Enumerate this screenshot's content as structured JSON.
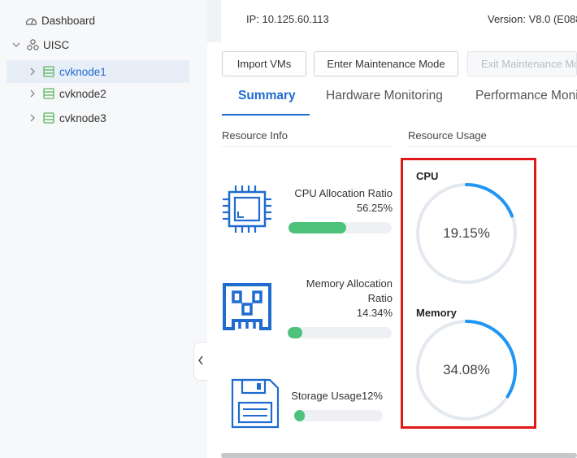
{
  "sidebar": {
    "dashboard_label": "Dashboard",
    "cluster_label": "UISC",
    "nodes": [
      {
        "label": "cvknode1",
        "selected": true
      },
      {
        "label": "cvknode2",
        "selected": false
      },
      {
        "label": "cvknode3",
        "selected": false
      }
    ]
  },
  "header": {
    "ip": "IP: 10.125.60.113",
    "version": "Version: V8.0 (E088"
  },
  "toolbar": {
    "import_label": "Import VMs",
    "enter_maintenance_label": "Enter Maintenance Mode",
    "exit_maintenance_label": "Exit Maintenance Mo"
  },
  "tabs": [
    {
      "label": "Summary",
      "active": true
    },
    {
      "label": "Hardware Monitoring",
      "active": false
    },
    {
      "label": "Performance Moni",
      "active": false
    }
  ],
  "resource_info": {
    "title": "Resource Info",
    "cpu": {
      "label": "CPU Allocation Ratio",
      "value_text": "56.25%",
      "ratio": 0.5625
    },
    "memory": {
      "label_line1": "Memory Allocation",
      "label_line2": "Ratio",
      "value_text": "14.34%",
      "ratio": 0.1434
    },
    "storage": {
      "label": "Storage Usage12%",
      "ratio": 0.12
    }
  },
  "resource_usage": {
    "title": "Resource Usage",
    "cpu": {
      "title": "CPU",
      "value_text": "19.15%",
      "ratio": 0.1915
    },
    "memory": {
      "title": "Memory",
      "value_text": "34.08%",
      "ratio": 0.3408
    }
  },
  "colors": {
    "accent": "#1f6bd0",
    "bar_fill": "#4cc27a",
    "gauge_arc": "#2196f3",
    "gauge_track": "#e4e8ef",
    "highlight_border": "#e01818"
  }
}
